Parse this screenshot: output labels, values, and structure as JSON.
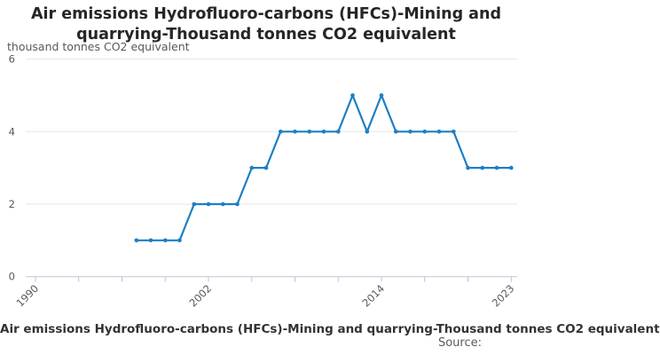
{
  "title": {
    "lines": [
      "Air emissions Hydrofluoro-carbons (HFCs)-Mining and",
      "quarrying-Thousand tonnes CO2 equivalent"
    ]
  },
  "unit_label": "thousand tonnes CO2 equivalent",
  "footer": {
    "caption": "Air emissions Hydrofluoro-carbons (HFCs)-Mining and quarrying-Thousand tonnes CO2 equivalent",
    "source_label": "Source:"
  },
  "chart_data": {
    "type": "line",
    "title": "Air emissions Hydrofluoro-carbons (HFCs)-Mining and quarrying-Thousand tonnes CO2 equivalent",
    "ylabel": "thousand tonnes CO2 equivalent",
    "xlabel": "",
    "x": [
      1997,
      1998,
      1999,
      2000,
      2001,
      2002,
      2003,
      2004,
      2005,
      2006,
      2007,
      2008,
      2009,
      2010,
      2011,
      2012,
      2013,
      2014,
      2015,
      2016,
      2017,
      2018,
      2019,
      2020,
      2021,
      2022,
      2023
    ],
    "values": [
      1,
      1,
      1,
      1,
      2,
      2,
      2,
      2,
      3,
      3,
      4,
      4,
      4,
      4,
      4,
      5,
      4,
      5,
      4,
      4,
      4,
      4,
      4,
      3,
      3,
      3,
      3
    ],
    "xlim": [
      1990,
      2023
    ],
    "ylim": [
      0,
      6
    ],
    "yticks": [
      0,
      2,
      4,
      6
    ],
    "ytick_labels": [
      "0",
      "2",
      "4",
      "6"
    ],
    "xticks": [
      1990,
      1993,
      1996,
      1999,
      2002,
      2005,
      2008,
      2011,
      2014,
      2017,
      2020,
      2023
    ],
    "xtick_labels": [
      "1990",
      "2002",
      "2014",
      "2023"
    ],
    "grid": "horizontal",
    "legend": "none",
    "colors": {
      "line": "#1d7fc3",
      "marker": "#1d7fc3",
      "grid": "#e6e6e6",
      "axis": "#b9c7d7",
      "tick_text": "#595959",
      "title_text": "#262626",
      "caption_text": "#333333"
    }
  }
}
